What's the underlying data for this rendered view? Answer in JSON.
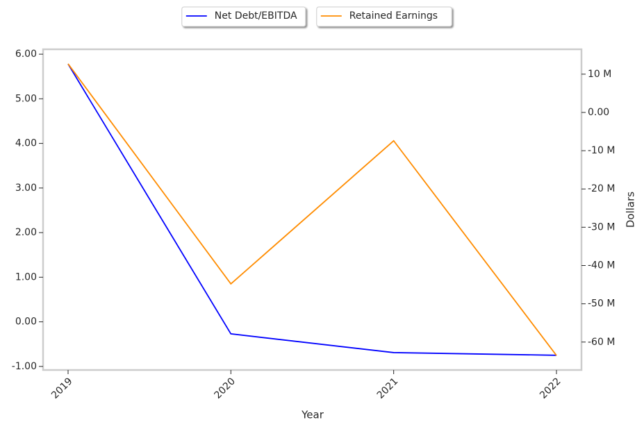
{
  "chart_data": {
    "type": "line",
    "categories": [
      "2019",
      "2020",
      "2021",
      "2022"
    ],
    "x_label": "Year",
    "y2_label": "Dollars",
    "series": [
      {
        "name": "Net Debt/EBITDA",
        "color": "#0000ff",
        "values": [
          5.78,
          -0.27,
          -0.69,
          -0.75
        ]
      },
      {
        "name": "Retained Earnings",
        "color": "#ff8c00",
        "axis": "y2",
        "values": [
          12700000,
          -44800000,
          -7400000,
          -63500000
        ]
      }
    ],
    "ylim": [
      -1.08,
      6.11
    ],
    "yticks": [
      {
        "value": -1,
        "label": "-1.00"
      },
      {
        "value": 0,
        "label": "0.00"
      },
      {
        "value": 1,
        "label": "1.00"
      },
      {
        "value": 2,
        "label": "2.00"
      },
      {
        "value": 3,
        "label": "3.00"
      },
      {
        "value": 4,
        "label": "4.00"
      },
      {
        "value": 5,
        "label": "5.00"
      },
      {
        "value": 6,
        "label": "6.00"
      }
    ],
    "y2lim": [
      -67300000,
      16500000
    ],
    "y2ticks": [
      {
        "value": -60000000,
        "label": "-60 M"
      },
      {
        "value": -50000000,
        "label": "-50 M"
      },
      {
        "value": -40000000,
        "label": "-40 M"
      },
      {
        "value": -30000000,
        "label": "-30 M"
      },
      {
        "value": -20000000,
        "label": "-20 M"
      },
      {
        "value": -10000000,
        "label": "-10 M"
      },
      {
        "value": 0,
        "label": "0.00"
      },
      {
        "value": 10000000,
        "label": "10 M"
      }
    ],
    "legend": "top",
    "grid": false
  }
}
